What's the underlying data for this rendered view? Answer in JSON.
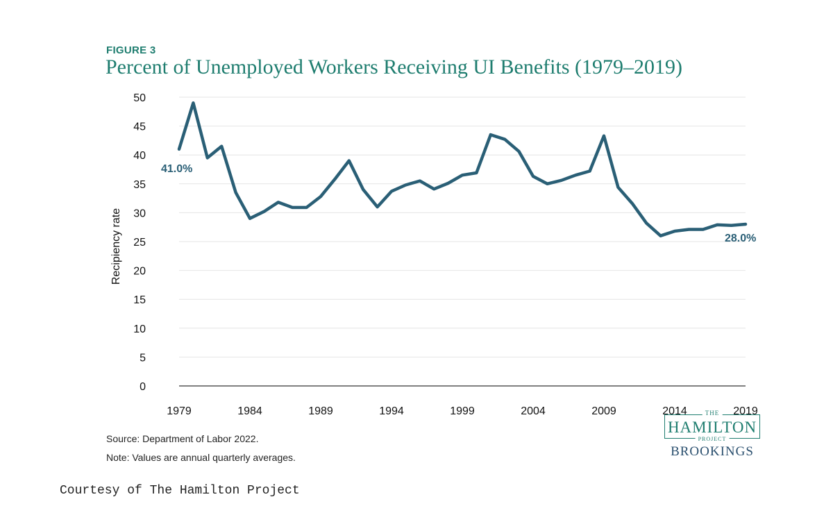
{
  "figure_label": "FIGURE 3",
  "title": "Percent of Unemployed Workers Receiving UI Benefits (1979–2019)",
  "source": "Source: Department of Labor 2022.",
  "note": "Note: Values are annual quarterly averages.",
  "logo": {
    "the": "THE",
    "name": "HAMILTON",
    "project": "PROJECT",
    "org": "BROOKINGS"
  },
  "courtesy": "Courtesy of The Hamilton Project",
  "colors": {
    "line": "#2a5f76",
    "title": "#1e7d6f",
    "grid": "#e4e4e4",
    "axis": "#555555"
  },
  "chart_data": {
    "type": "line",
    "ylabel": "Recipiency rate",
    "xlabel": "",
    "ylim": [
      0,
      50
    ],
    "yticks": [
      0,
      5,
      10,
      15,
      20,
      25,
      30,
      35,
      40,
      45,
      50
    ],
    "xlim": [
      1979,
      2019
    ],
    "xticks": [
      1979,
      1984,
      1989,
      1994,
      1999,
      2004,
      2009,
      2014,
      2019
    ],
    "grid": true,
    "series": [
      {
        "x": [
          1979,
          1980,
          1981,
          1982,
          1983,
          1984,
          1985,
          1986,
          1987,
          1988,
          1989,
          1990,
          1991,
          1992,
          1993,
          1994,
          1995,
          1996,
          1997,
          1998,
          1999,
          2000,
          2001,
          2002,
          2003,
          2004,
          2005,
          2006,
          2007,
          2008,
          2009,
          2010,
          2011,
          2012,
          2013,
          2014,
          2015,
          2016,
          2017,
          2018,
          2019
        ],
        "values": [
          41.0,
          49.0,
          39.5,
          41.5,
          33.5,
          29.0,
          30.2,
          31.8,
          30.9,
          30.9,
          32.8,
          35.8,
          39.0,
          34.0,
          31.0,
          33.7,
          34.8,
          35.5,
          34.1,
          35.1,
          36.5,
          36.9,
          43.5,
          42.7,
          40.6,
          36.3,
          35.0,
          35.6,
          36.5,
          37.2,
          43.3,
          34.4,
          31.6,
          28.2,
          26.0,
          26.8,
          27.1,
          27.1,
          27.9,
          27.8,
          28.0
        ]
      }
    ],
    "annotations": [
      {
        "text": "41.0%",
        "x": 1979,
        "y": 41.0
      },
      {
        "text": "28.0%",
        "x": 2019,
        "y": 28.0
      }
    ]
  }
}
